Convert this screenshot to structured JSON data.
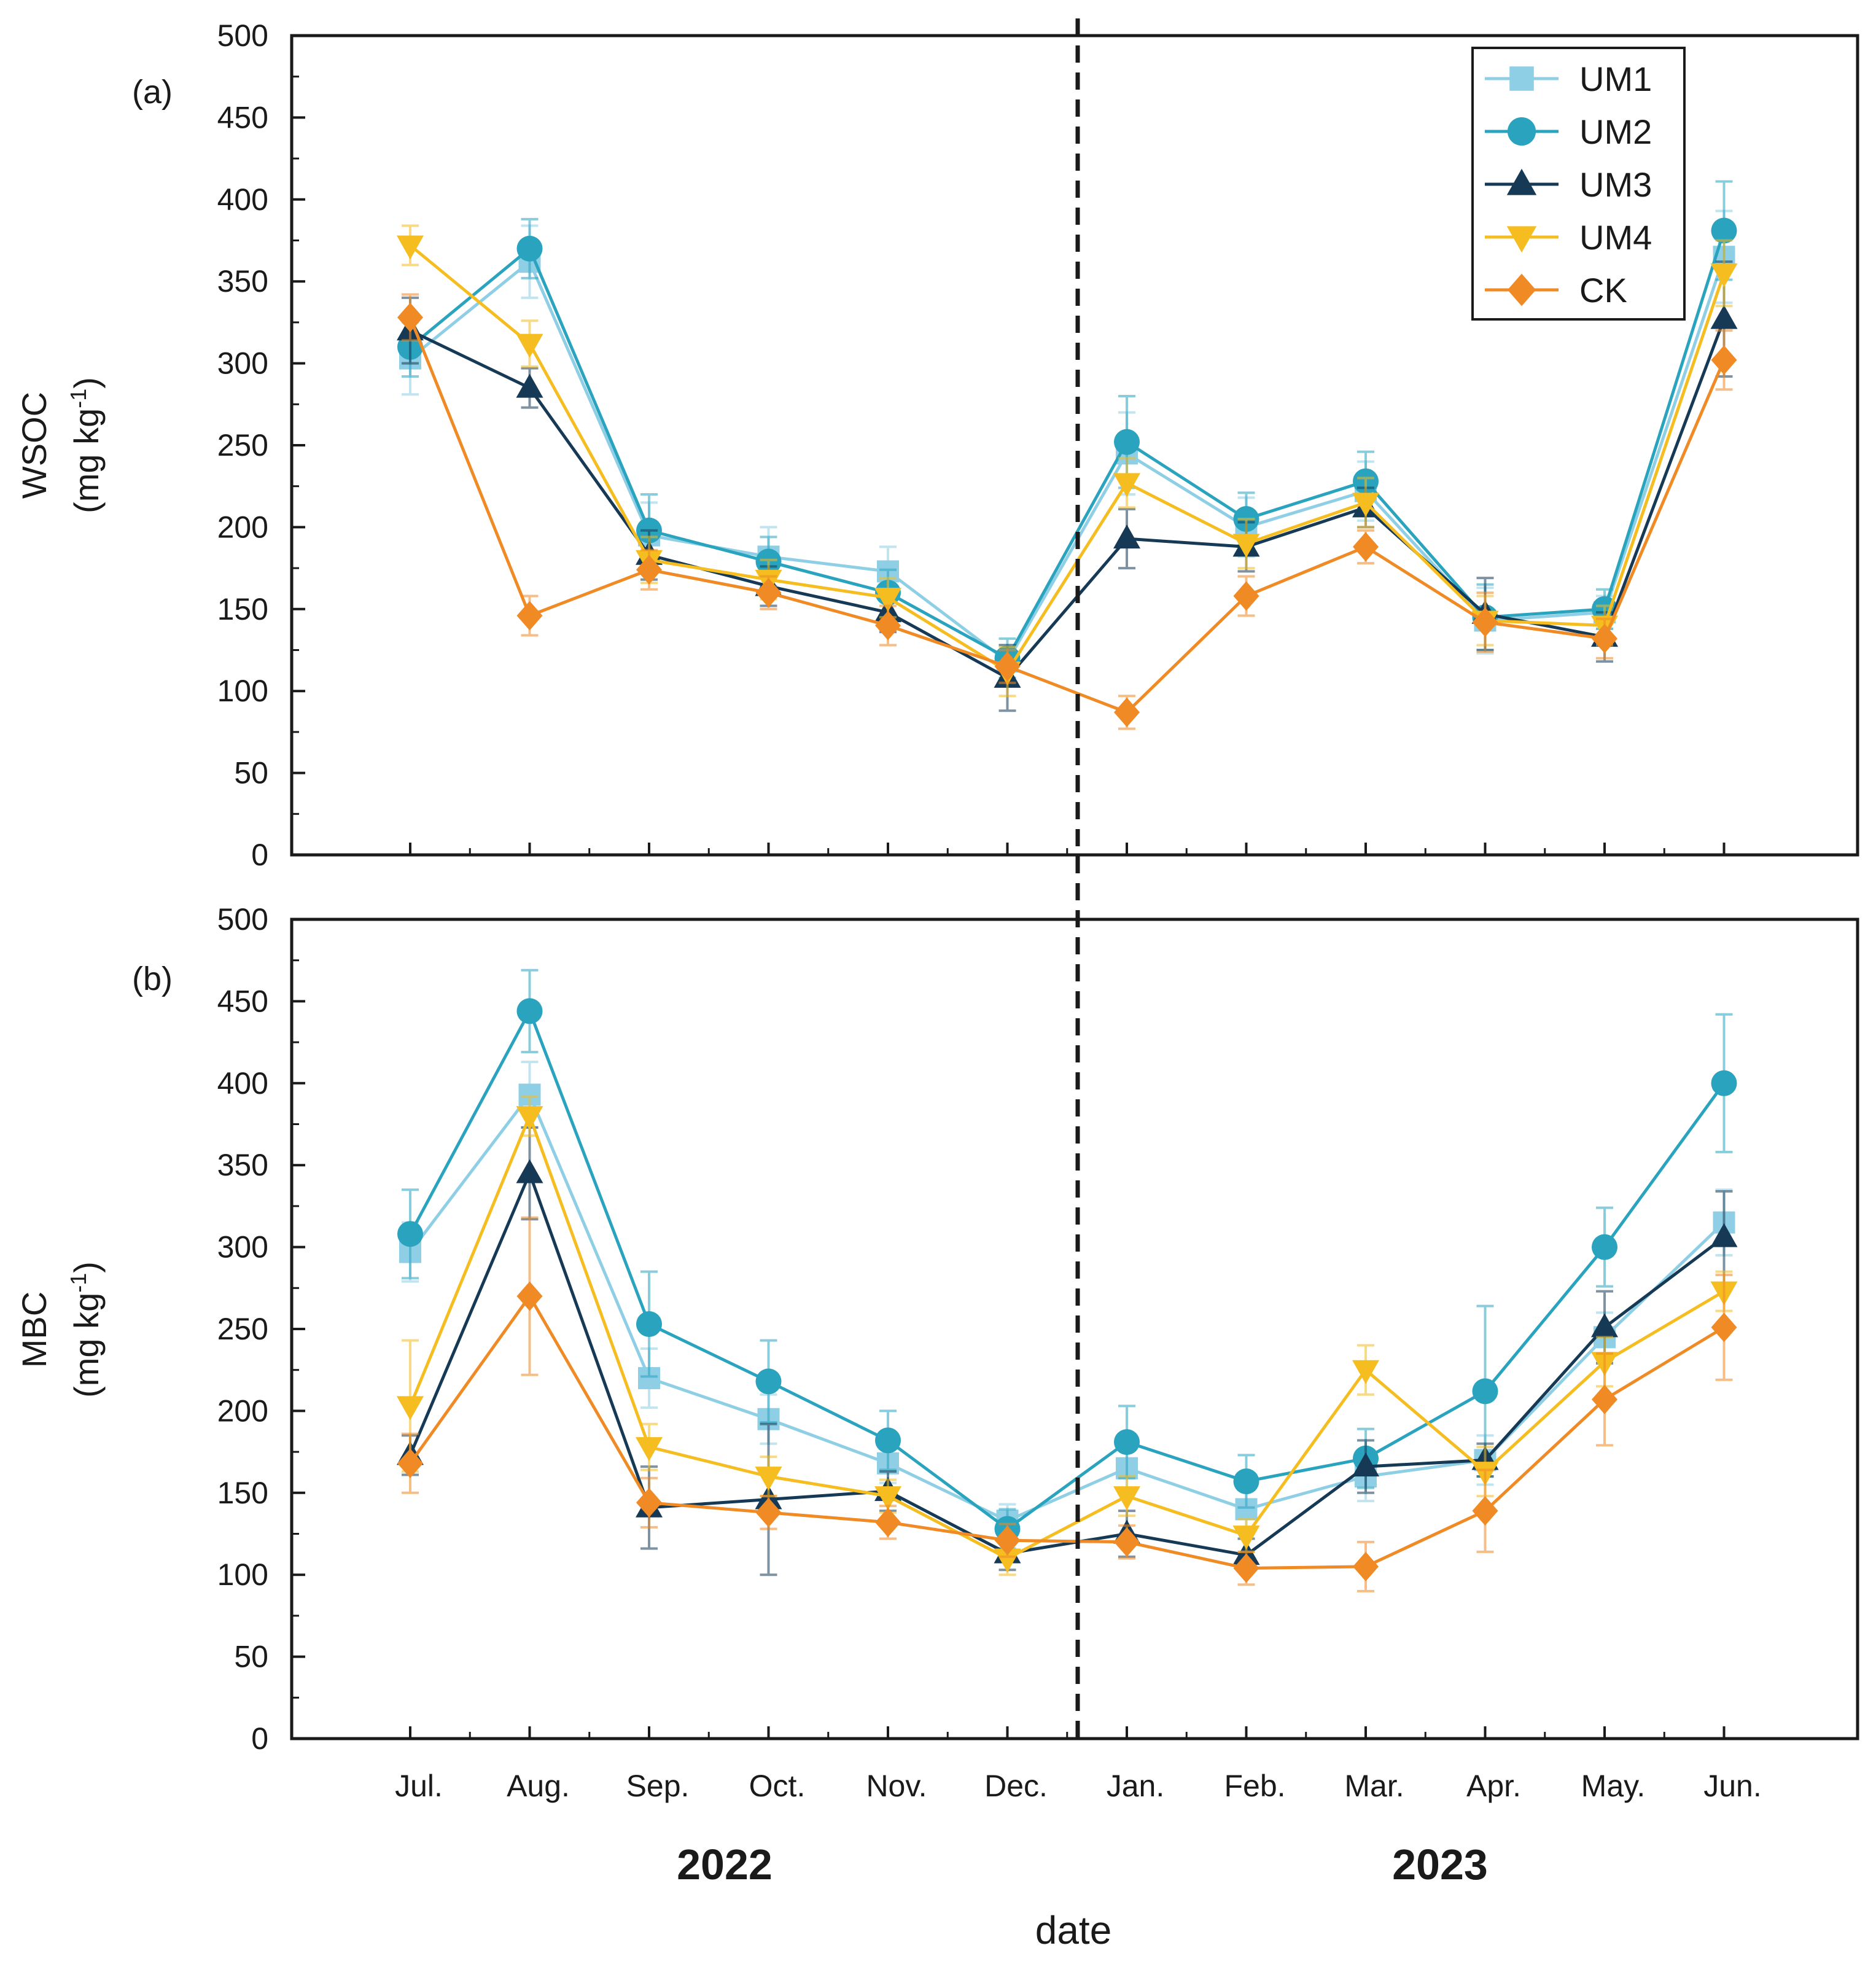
{
  "chart_data": {
    "type": "line",
    "x_label": "date",
    "x_categories": [
      "Jul.",
      "Aug.",
      "Sep.",
      "Oct.",
      "Nov.",
      "Dec.",
      "Jan.",
      "Feb.",
      "Mar.",
      "Apr.",
      "May.",
      "Jun."
    ],
    "year_labels": [
      "2022",
      "2023"
    ],
    "legend": {
      "position": "top-right",
      "entries": [
        {
          "name": "UM1",
          "color": "#8fcfe6",
          "marker": "square"
        },
        {
          "name": "UM2",
          "color": "#2aa3bf",
          "marker": "circle"
        },
        {
          "name": "UM3",
          "color": "#163a55",
          "marker": "triangle-up"
        },
        {
          "name": "UM4",
          "color": "#f5bd20",
          "marker": "triangle-down"
        },
        {
          "name": "CK",
          "color": "#f08a24",
          "marker": "diamond"
        }
      ]
    },
    "panels": [
      {
        "panel_label": "(a)",
        "ylabel_line1": "WSOC",
        "ylabel_line2": "(mg kg",
        "ylabel_sup": "-1",
        "ylabel_close": ")",
        "ylim": [
          0,
          500
        ],
        "yticks": [
          "0",
          "50",
          "100",
          "150",
          "200",
          "250",
          "300",
          "350",
          "400",
          "450",
          "500"
        ],
        "series": [
          {
            "name": "UM1",
            "values": [
              303,
              362,
              195,
              182,
              173,
              118,
              245,
              200,
              222,
              143,
              148,
              365
            ],
            "errors": [
              22,
              22,
              20,
              18,
              15,
              10,
              25,
              18,
              18,
              20,
              10,
              28
            ]
          },
          {
            "name": "UM2",
            "values": [
              310,
              370,
              198,
              179,
              160,
              120,
              252,
              205,
              228,
              145,
              150,
              381
            ],
            "errors": [
              18,
              18,
              22,
              15,
              14,
              12,
              28,
              16,
              18,
              20,
              12,
              30
            ]
          },
          {
            "name": "UM3",
            "values": [
              320,
              285,
              183,
              164,
              148,
              108,
              193,
              188,
              212,
              147,
              133,
              327
            ],
            "errors": [
              20,
              12,
              15,
              12,
              12,
              20,
              18,
              15,
              12,
              22,
              15,
              35
            ]
          },
          {
            "name": "UM4",
            "values": [
              372,
              312,
              180,
              168,
              157,
              112,
              227,
              190,
              215,
              143,
              140,
              355
            ],
            "errors": [
              12,
              14,
              14,
              12,
              12,
              15,
              15,
              15,
              15,
              15,
              12,
              20
            ]
          },
          {
            "name": "CK",
            "values": [
              328,
              146,
              174,
              160,
              140,
              115,
              87,
              158,
              188,
              142,
              132,
              302
            ],
            "errors": [
              14,
              12,
              12,
              10,
              12,
              10,
              10,
              12,
              10,
              18,
              12,
              18
            ]
          }
        ]
      },
      {
        "panel_label": "(b)",
        "ylabel_line1": "MBC",
        "ylabel_line2": "(mg kg",
        "ylabel_sup": "-1",
        "ylabel_close": ")",
        "ylim": [
          0,
          500
        ],
        "yticks": [
          "0",
          "50",
          "100",
          "150",
          "200",
          "250",
          "300",
          "350",
          "400",
          "450",
          "500"
        ],
        "series": [
          {
            "name": "UM1",
            "values": [
              297,
              393,
              220,
              195,
              168,
              133,
              165,
              140,
              160,
              170,
              245,
              315
            ],
            "errors": [
              18,
              20,
              18,
              15,
              12,
              10,
              15,
              12,
              15,
              15,
              15,
              20
            ]
          },
          {
            "name": "UM2",
            "values": [
              308,
              444,
              253,
              218,
              182,
              128,
              181,
              157,
              171,
              212,
              300,
              400
            ],
            "errors": [
              27,
              25,
              32,
              25,
              18,
              12,
              22,
              16,
              18,
              52,
              24,
              42
            ]
          },
          {
            "name": "UM3",
            "values": [
              173,
              345,
              141,
              146,
              151,
              113,
              125,
              112,
              166,
              170,
              251,
              306
            ],
            "errors": [
              12,
              28,
              25,
              46,
              12,
              10,
              14,
              10,
              16,
              10,
              22,
              28
            ]
          },
          {
            "name": "UM4",
            "values": [
              203,
              380,
              178,
              160,
              148,
              110,
              148,
              124,
              225,
              163,
              230,
              273
            ],
            "errors": [
              40,
              12,
              14,
              12,
              10,
              10,
              12,
              10,
              15,
              15,
              15,
              12
            ]
          },
          {
            "name": "CK",
            "values": [
              168,
              270,
              144,
              138,
              132,
              121,
              120,
              104,
              105,
              139,
              207,
              251
            ],
            "errors": [
              18,
              48,
              15,
              10,
              10,
              10,
              10,
              10,
              15,
              25,
              28,
              32
            ]
          }
        ]
      }
    ]
  }
}
